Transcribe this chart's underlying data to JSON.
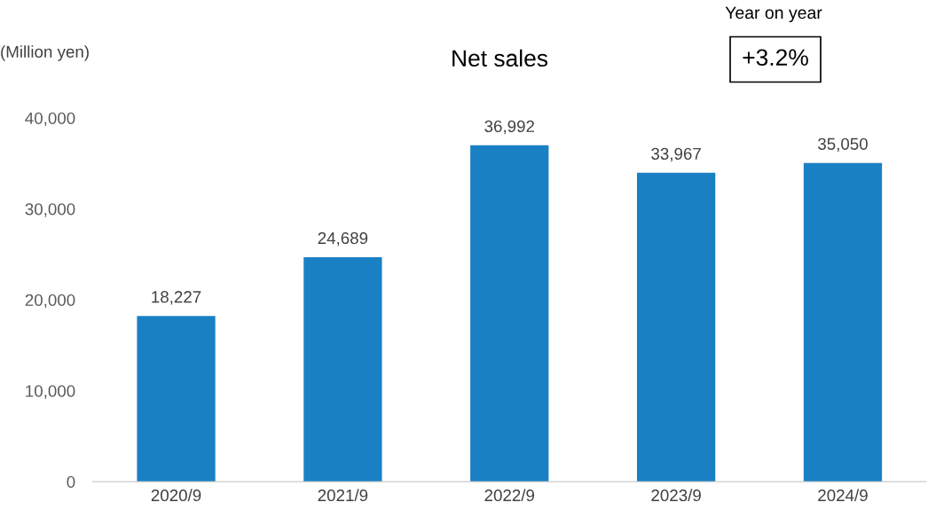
{
  "chart_data": {
    "type": "bar",
    "title": "Net sales",
    "ylabel": "(Million yen)",
    "annotations": [
      "Year on year",
      "+3.2%"
    ],
    "categories": [
      "2020/9",
      "2021/9",
      "2022/9",
      "2023/9",
      "2024/9"
    ],
    "values": [
      18227,
      24689,
      36992,
      33967,
      35050
    ],
    "value_labels": [
      "18,227",
      "24,689",
      "36,992",
      "33,967",
      "35,050"
    ],
    "color": "#1a80c4",
    "ylim": [
      0,
      40000
    ],
    "yticks": [
      {
        "value": 0,
        "label": "0"
      },
      {
        "value": 10000,
        "label": "10,000"
      },
      {
        "value": 20000,
        "label": "20,000"
      },
      {
        "value": 30000,
        "label": "30,000"
      },
      {
        "value": 40000,
        "label": "40,000"
      }
    ],
    "grid": false,
    "legend": false
  }
}
